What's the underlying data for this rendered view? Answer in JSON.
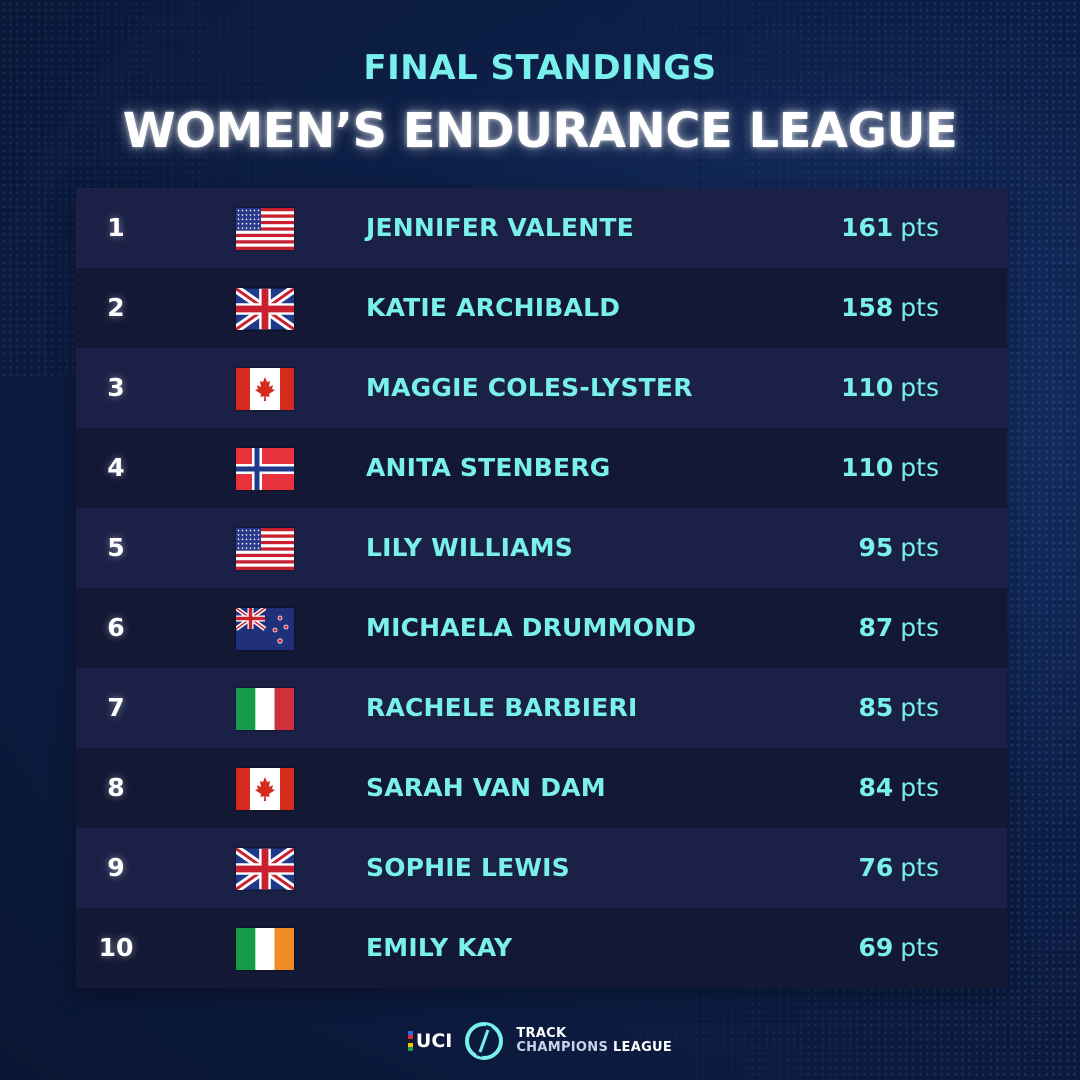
{
  "header": {
    "subtitle": "FINAL STANDINGS",
    "title": "WOMEN’S ENDURANCE LEAGUE"
  },
  "colors": {
    "accent": "#7af0ec",
    "title": "#ffffff",
    "row_light": "#1b2146",
    "row_dark": "#131835",
    "background": "#0d1f47"
  },
  "standings": [
    {
      "rank": "1",
      "flag": "usa-flag-icon",
      "name": "JENNIFER VALENTE",
      "points": "161",
      "unit": "pts"
    },
    {
      "rank": "2",
      "flag": "uk-flag-icon",
      "name": "KATIE ARCHIBALD",
      "points": "158",
      "unit": "pts"
    },
    {
      "rank": "3",
      "flag": "canada-flag-icon",
      "name": "MAGGIE COLES-LYSTER",
      "points": "110",
      "unit": "pts"
    },
    {
      "rank": "4",
      "flag": "norway-flag-icon",
      "name": "ANITA STENBERG",
      "points": "110",
      "unit": "pts"
    },
    {
      "rank": "5",
      "flag": "usa-flag-icon",
      "name": "LILY WILLIAMS",
      "points": "95",
      "unit": "pts"
    },
    {
      "rank": "6",
      "flag": "new-zealand-flag-icon",
      "name": "MICHAELA DRUMMOND",
      "points": "87",
      "unit": "pts"
    },
    {
      "rank": "7",
      "flag": "italy-flag-icon",
      "name": "RACHELE BARBIERI",
      "points": "85",
      "unit": "pts"
    },
    {
      "rank": "8",
      "flag": "canada-flag-icon",
      "name": "SARAH VAN DAM",
      "points": "84",
      "unit": "pts"
    },
    {
      "rank": "9",
      "flag": "uk-flag-icon",
      "name": "SOPHIE LEWIS",
      "points": "76",
      "unit": "pts"
    },
    {
      "rank": "10",
      "flag": "ireland-flag-icon",
      "name": "EMILY KAY",
      "points": "69",
      "unit": "pts"
    }
  ],
  "footer": {
    "uci_logo": "UCI",
    "league_line1": "TRACK",
    "league_line2": "CHAMPIONS",
    "league_line3": "LEAGUE"
  }
}
